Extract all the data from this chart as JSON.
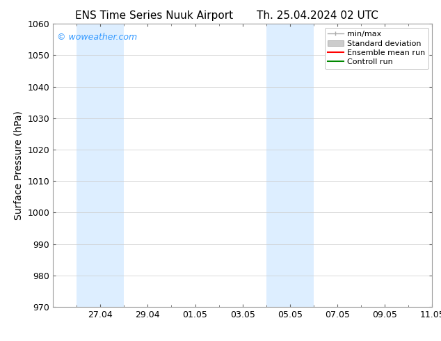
{
  "title_left": "ENS Time Series Nuuk Airport",
  "title_right": "Th. 25.04.2024 02 UTC",
  "ylabel": "Surface Pressure (hPa)",
  "ylim": [
    970,
    1060
  ],
  "yticks": [
    970,
    980,
    990,
    1000,
    1010,
    1020,
    1030,
    1040,
    1050,
    1060
  ],
  "xlim": [
    0,
    16
  ],
  "xtick_labels": [
    "27.04",
    "29.04",
    "01.05",
    "03.05",
    "05.05",
    "07.05",
    "09.05",
    "11.05"
  ],
  "xtick_positions": [
    2,
    4,
    6,
    8,
    10,
    12,
    14,
    16
  ],
  "shaded_bands": [
    {
      "x_start": 1.0,
      "x_end": 3.0
    },
    {
      "x_start": 9.0,
      "x_end": 11.0
    }
  ],
  "shaded_color": "#ddeeff",
  "background_color": "#ffffff",
  "watermark_text": "© woweather.com",
  "watermark_color": "#3399ff",
  "legend_entries": [
    {
      "label": "min/max",
      "color": "#aaaaaa",
      "style": "minmax"
    },
    {
      "label": "Standard deviation",
      "color": "#cccccc",
      "style": "patch"
    },
    {
      "label": "Ensemble mean run",
      "color": "#ff0000",
      "style": "line"
    },
    {
      "label": "Controll run",
      "color": "#008800",
      "style": "line"
    }
  ],
  "grid_color": "#cccccc",
  "title_fontsize": 11,
  "label_fontsize": 10,
  "tick_fontsize": 9,
  "legend_fontsize": 8,
  "watermark_fontsize": 9
}
